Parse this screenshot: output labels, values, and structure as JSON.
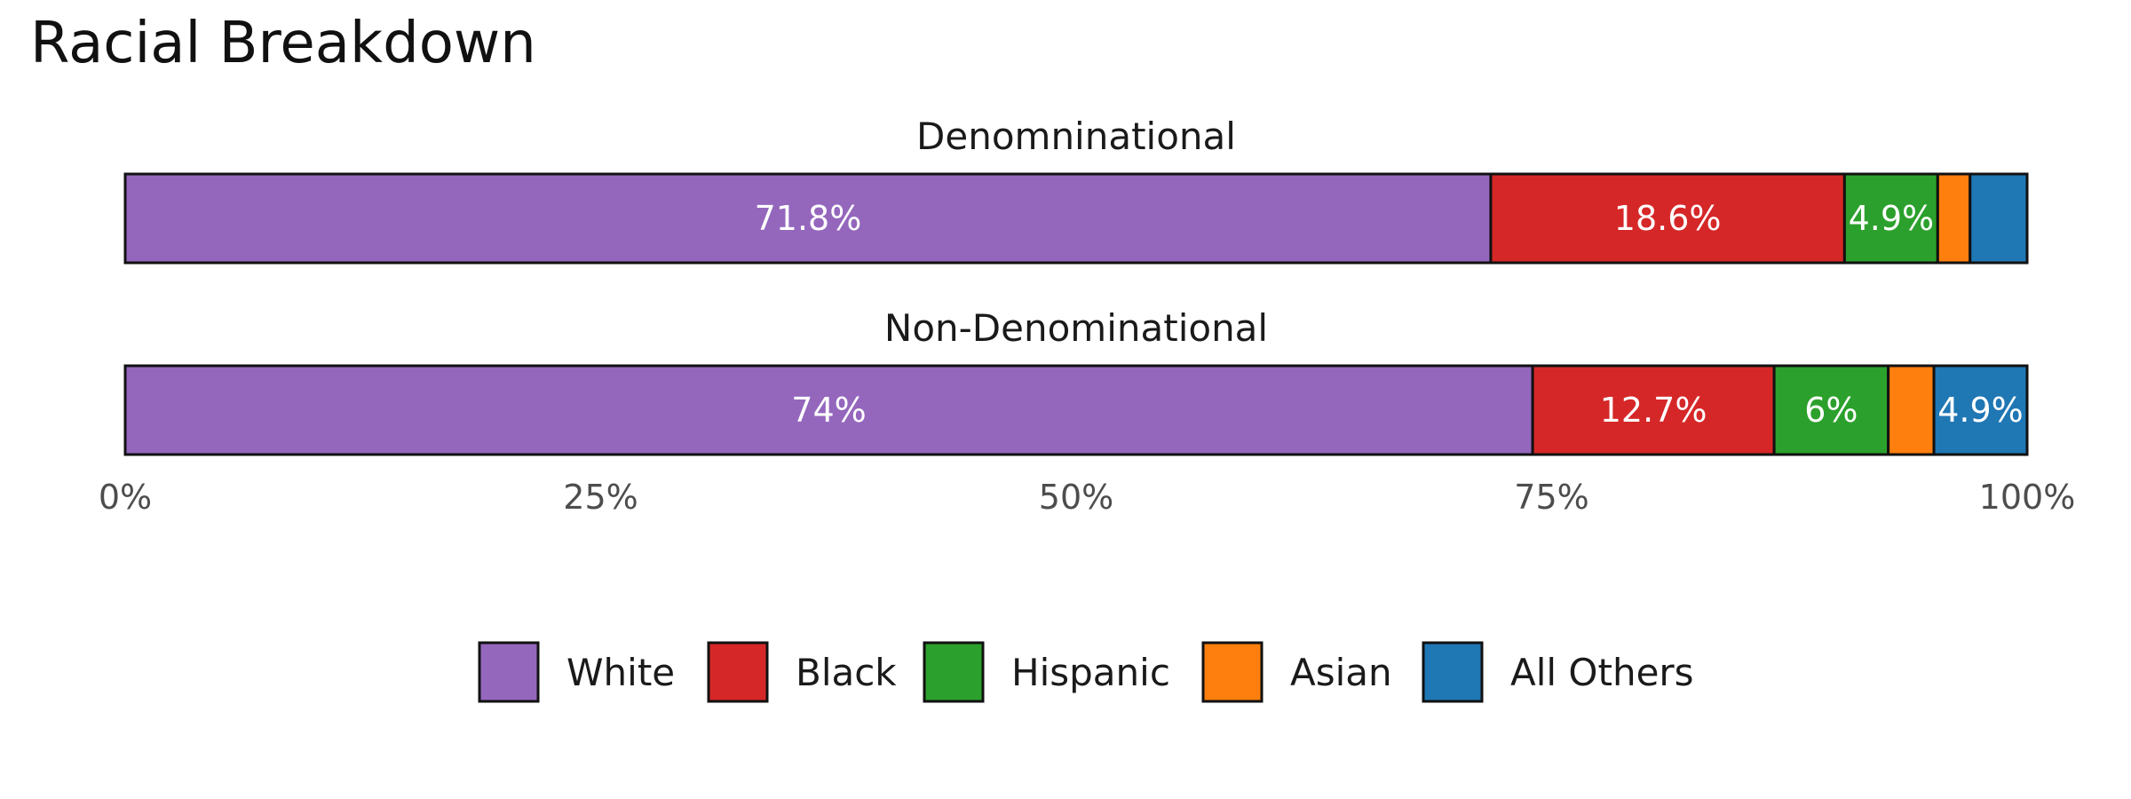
{
  "chart_data": {
    "type": "bar",
    "orientation": "horizontal",
    "stacked": true,
    "title": "Racial Breakdown",
    "facets": [
      "Denomninational",
      "Non-Denominational"
    ],
    "series": [
      {
        "name": "White",
        "color": "#9467bd",
        "values": [
          71.8,
          74.0
        ],
        "labels": [
          "71.8%",
          "74%"
        ]
      },
      {
        "name": "Black",
        "color": "#d62728",
        "values": [
          18.6,
          12.7
        ],
        "labels": [
          "18.6%",
          "12.7%"
        ]
      },
      {
        "name": "Hispanic",
        "color": "#2ca02c",
        "values": [
          4.9,
          6.0
        ],
        "labels": [
          "4.9%",
          "6%"
        ]
      },
      {
        "name": "Asian",
        "color": "#ff7f0e",
        "values": [
          1.7,
          2.4
        ],
        "labels": [
          "",
          ""
        ]
      },
      {
        "name": "All Others",
        "color": "#1f77b4",
        "values": [
          3.0,
          4.9
        ],
        "labels": [
          "",
          "4.9%"
        ]
      }
    ],
    "xlim": [
      0,
      100
    ],
    "x_ticks": [
      0,
      25,
      50,
      75,
      100
    ],
    "x_tick_labels": [
      "0%",
      "25%",
      "50%",
      "75%",
      "100%"
    ],
    "legend_position": "bottom",
    "grid": false
  }
}
